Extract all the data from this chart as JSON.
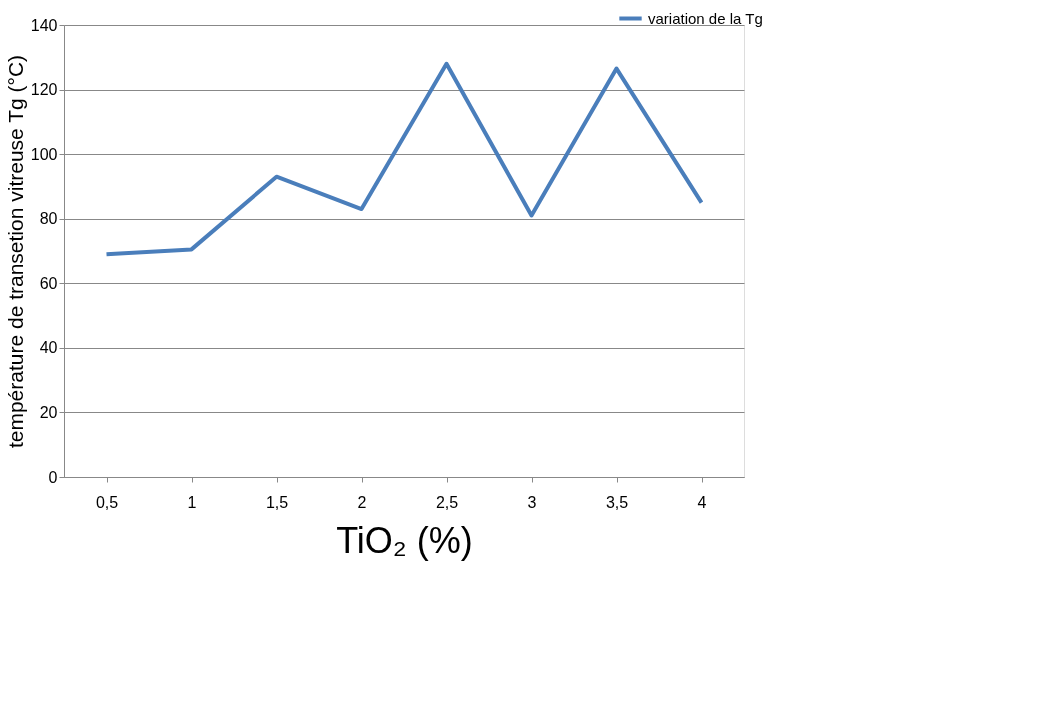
{
  "chart_data": {
    "type": "line",
    "xlabel": "TiO₂  (%)",
    "ylabel": "température de transetion  vitreuse Tg (°C)",
    "categories": [
      "0,5",
      "1",
      "1,5",
      "2",
      "2,5",
      "3",
      "3,5",
      "4"
    ],
    "series": [
      {
        "name": "variation de la Tg",
        "color": "#4a7ebb",
        "values": [
          69,
          70.5,
          93,
          83,
          128,
          81,
          126.5,
          85
        ]
      }
    ],
    "ylim": [
      0,
      140
    ],
    "yticks": [
      0,
      20,
      40,
      60,
      80,
      100,
      120,
      140
    ],
    "grid": "y",
    "legend": "top right",
    "marker": "none",
    "line_style": "solid"
  }
}
